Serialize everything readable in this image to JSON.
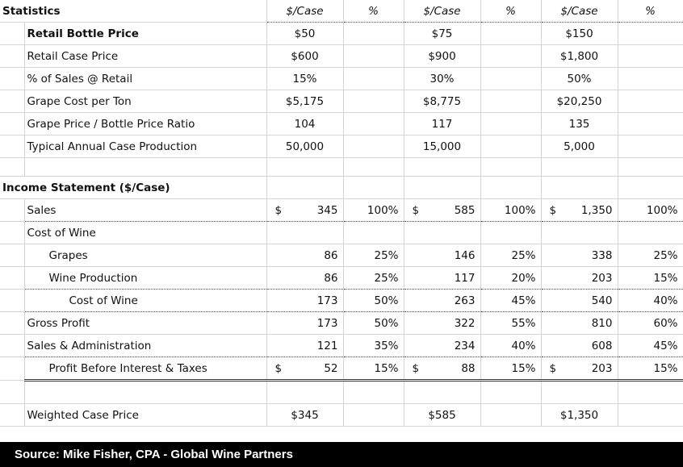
{
  "stats": {
    "title": "Statistics",
    "headers": [
      "$/Case",
      "%",
      "$/Case",
      "%",
      "$/Case",
      "%"
    ],
    "rows": [
      {
        "label": "Retail Bottle Price",
        "v": [
          "$50",
          "$75",
          "$150"
        ],
        "bold": true
      },
      {
        "label": "Retail Case Price",
        "v": [
          "$600",
          "$900",
          "$1,800"
        ]
      },
      {
        "label": "% of Sales @ Retail",
        "v": [
          "15%",
          "30%",
          "50%"
        ]
      },
      {
        "label": "Grape Cost per Ton",
        "v": [
          "$5,175",
          "$8,775",
          "$20,250"
        ]
      },
      {
        "label": "Grape Price / Bottle Price Ratio",
        "v": [
          "104",
          "117",
          "135"
        ]
      },
      {
        "label": "Typical Annual Case Production",
        "v": [
          "50,000",
          "15,000",
          "5,000"
        ]
      }
    ]
  },
  "income": {
    "title": "Income Statement ($/Case)",
    "currency_symbol": "$",
    "sales": {
      "label": "Sales",
      "v": [
        "345",
        "100%",
        "585",
        "100%",
        "1,350",
        "100%"
      ]
    },
    "cost_header": "Cost of Wine",
    "grapes": {
      "label": "Grapes",
      "v": [
        "86",
        "25%",
        "146",
        "25%",
        "338",
        "25%"
      ]
    },
    "wine_production": {
      "label": "Wine Production",
      "v": [
        "86",
        "25%",
        "117",
        "20%",
        "203",
        "15%"
      ]
    },
    "cost_total": {
      "label": "Cost of Wine",
      "v": [
        "173",
        "50%",
        "263",
        "45%",
        "540",
        "40%"
      ]
    },
    "gross_profit": {
      "label": "Gross Profit",
      "v": [
        "173",
        "50%",
        "322",
        "55%",
        "810",
        "60%"
      ]
    },
    "sga": {
      "label": "Sales & Administration",
      "v": [
        "121",
        "35%",
        "234",
        "40%",
        "608",
        "45%"
      ]
    },
    "pbit": {
      "label": "Profit Before Interest & Taxes",
      "v": [
        "52",
        "15%",
        "88",
        "15%",
        "203",
        "15%"
      ]
    }
  },
  "weighted": {
    "label": "Weighted Case Price",
    "v": [
      "$345",
      "$585",
      "$1,350"
    ]
  },
  "caption": "Source: Mike Fisher, CPA - Global Wine Partners"
}
